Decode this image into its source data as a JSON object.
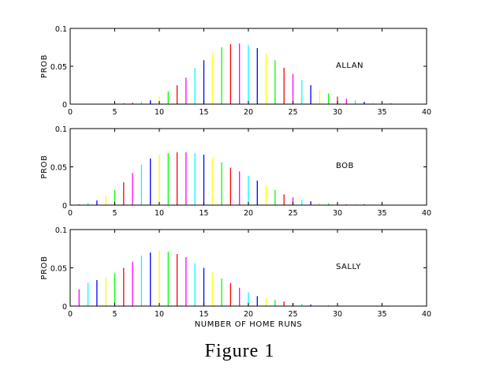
{
  "caption": "Figure 1",
  "chart_data": [
    {
      "type": "bar",
      "annotation": "ALLAN",
      "ylabel": "PROB",
      "xlabel": "",
      "xlim": [
        0,
        40
      ],
      "ylim": [
        0,
        0.1
      ],
      "xticks": [
        "0",
        "5",
        "10",
        "15",
        "20",
        "25",
        "30",
        "35",
        "40"
      ],
      "yticks": [
        "0",
        "0.05",
        "0.1"
      ],
      "x": [
        5,
        6,
        7,
        8,
        9,
        10,
        11,
        12,
        13,
        14,
        15,
        16,
        17,
        18,
        19,
        20,
        21,
        22,
        23,
        24,
        25,
        26,
        27,
        28,
        29,
        30,
        31,
        32,
        33,
        34,
        35,
        36
      ],
      "values": [
        0.001,
        0.001,
        0.002,
        0.003,
        0.005,
        0.01,
        0.017,
        0.025,
        0.035,
        0.048,
        0.058,
        0.068,
        0.075,
        0.079,
        0.08,
        0.078,
        0.074,
        0.066,
        0.058,
        0.048,
        0.04,
        0.032,
        0.025,
        0.019,
        0.014,
        0.01,
        0.007,
        0.005,
        0.003,
        0.002,
        0.001,
        0.001
      ]
    },
    {
      "type": "bar",
      "annotation": "BOB",
      "ylabel": "PROB",
      "xlabel": "",
      "xlim": [
        0,
        40
      ],
      "ylim": [
        0,
        0.1
      ],
      "xticks": [
        "0",
        "5",
        "10",
        "15",
        "20",
        "25",
        "30",
        "35",
        "40"
      ],
      "yticks": [
        "0",
        "0.05",
        "0.1"
      ],
      "x": [
        1,
        2,
        3,
        4,
        5,
        6,
        7,
        8,
        9,
        10,
        11,
        12,
        13,
        14,
        15,
        16,
        17,
        18,
        19,
        20,
        21,
        22,
        23,
        24,
        25,
        26,
        27,
        28,
        29,
        30,
        31,
        32,
        33,
        34,
        35
      ],
      "values": [
        0.001,
        0.003,
        0.006,
        0.012,
        0.02,
        0.03,
        0.042,
        0.053,
        0.061,
        0.066,
        0.068,
        0.069,
        0.069,
        0.068,
        0.066,
        0.062,
        0.056,
        0.049,
        0.044,
        0.038,
        0.032,
        0.026,
        0.02,
        0.014,
        0.01,
        0.007,
        0.005,
        0.003,
        0.002,
        0.001,
        0.001,
        0.001,
        0.001,
        0.001,
        0.001
      ]
    },
    {
      "type": "bar",
      "annotation": "SALLY",
      "ylabel": "PROB",
      "xlabel": "NUMBER OF HOME RUNS",
      "xlim": [
        0,
        40
      ],
      "ylim": [
        0,
        0.1
      ],
      "xticks": [
        "0",
        "5",
        "10",
        "15",
        "20",
        "25",
        "30",
        "35",
        "40"
      ],
      "yticks": [
        "0",
        "0.05",
        "0.1"
      ],
      "x": [
        1,
        2,
        3,
        4,
        5,
        6,
        7,
        8,
        9,
        10,
        11,
        12,
        13,
        14,
        15,
        16,
        17,
        18,
        19,
        20,
        21,
        22,
        23,
        24,
        25,
        26,
        27,
        28,
        29,
        30
      ],
      "values": [
        0.022,
        0.03,
        0.034,
        0.038,
        0.043,
        0.05,
        0.058,
        0.066,
        0.07,
        0.072,
        0.071,
        0.068,
        0.064,
        0.056,
        0.05,
        0.044,
        0.036,
        0.03,
        0.024,
        0.018,
        0.013,
        0.01,
        0.008,
        0.006,
        0.004,
        0.003,
        0.002,
        0.001,
        0.001,
        0.001
      ]
    }
  ],
  "bar_colors": [
    "#ff0000",
    "#ff00ff",
    "#00ffff",
    "#0000ff",
    "#ffff00",
    "#00ff00"
  ]
}
